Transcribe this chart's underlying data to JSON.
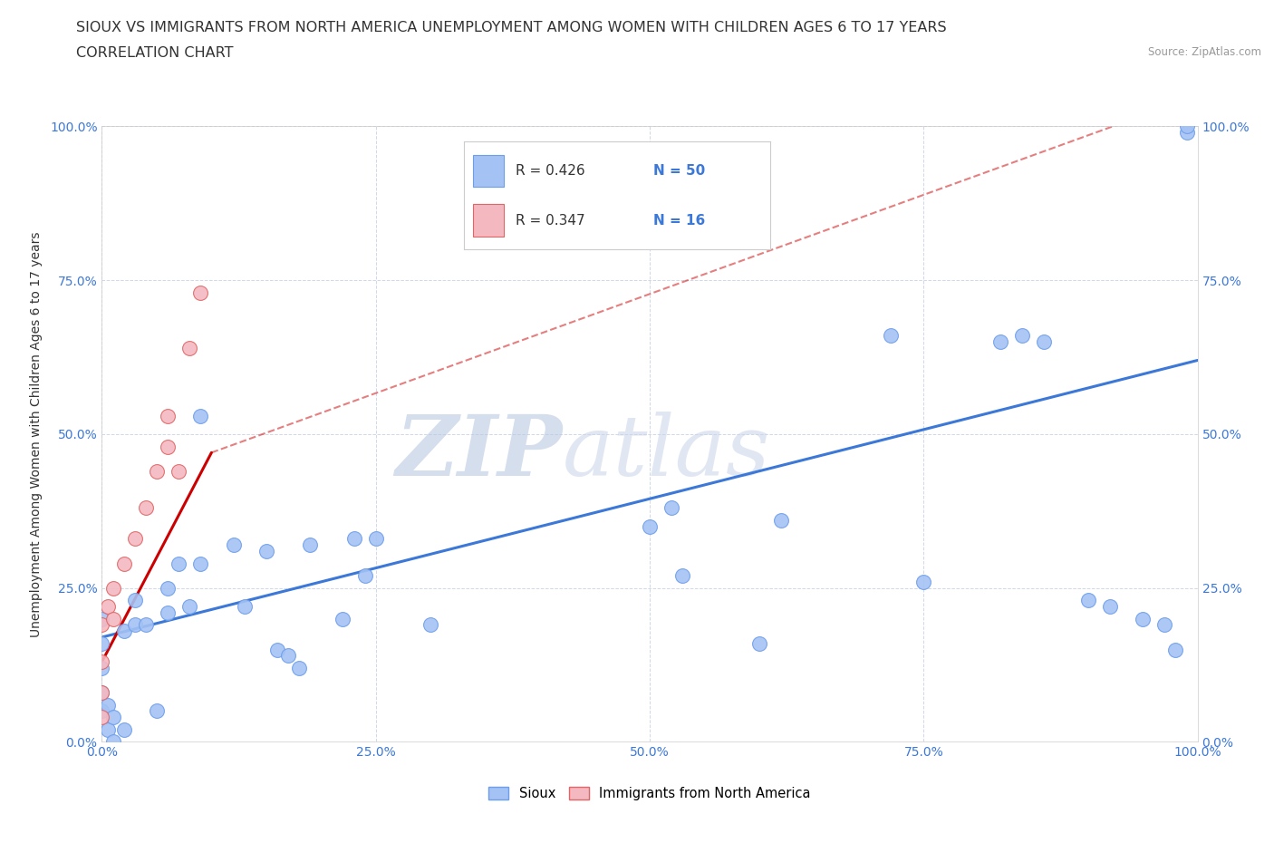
{
  "title_line1": "SIOUX VS IMMIGRANTS FROM NORTH AMERICA UNEMPLOYMENT AMONG WOMEN WITH CHILDREN AGES 6 TO 17 YEARS",
  "title_line2": "CORRELATION CHART",
  "source_text": "Source: ZipAtlas.com",
  "ylabel": "Unemployment Among Women with Children Ages 6 to 17 years",
  "xlim": [
    0.0,
    1.0
  ],
  "ylim": [
    0.0,
    1.0
  ],
  "xticks": [
    0.0,
    0.25,
    0.5,
    0.75,
    1.0
  ],
  "yticks": [
    0.0,
    0.25,
    0.5,
    0.75,
    1.0
  ],
  "xticklabels": [
    "0.0%",
    "25.0%",
    "50.0%",
    "75.0%",
    "100.0%"
  ],
  "yticklabels": [
    "0.0%",
    "25.0%",
    "50.0%",
    "75.0%",
    "100.0%"
  ],
  "sioux_color": "#a4c2f4",
  "immigrants_color": "#f4b8c1",
  "sioux_edge_color": "#6d9eeb",
  "immigrants_edge_color": "#e06666",
  "trend_sioux_color": "#3c78d8",
  "trend_immigrants_color": "#cc0000",
  "watermark_color": "#c8d4e8",
  "grid_color": "#d0d8e8",
  "legend_R_color": "#333333",
  "legend_N_color": "#3c78d8",
  "legend_label_sioux": "Sioux",
  "legend_label_immigrants": "Immigrants from North America",
  "sioux_x": [
    0.0,
    0.0,
    0.0,
    0.0,
    0.0,
    0.005,
    0.005,
    0.01,
    0.01,
    0.02,
    0.02,
    0.03,
    0.03,
    0.04,
    0.05,
    0.06,
    0.06,
    0.07,
    0.08,
    0.09,
    0.09,
    0.12,
    0.13,
    0.15,
    0.16,
    0.17,
    0.18,
    0.19,
    0.22,
    0.23,
    0.24,
    0.25,
    0.3,
    0.5,
    0.52,
    0.53,
    0.6,
    0.62,
    0.72,
    0.75,
    0.82,
    0.84,
    0.86,
    0.9,
    0.92,
    0.95,
    0.97,
    0.98,
    0.99,
    0.99
  ],
  "sioux_y": [
    0.05,
    0.08,
    0.12,
    0.16,
    0.2,
    0.02,
    0.06,
    0.0,
    0.04,
    0.02,
    0.18,
    0.19,
    0.23,
    0.19,
    0.05,
    0.21,
    0.25,
    0.29,
    0.22,
    0.53,
    0.29,
    0.32,
    0.22,
    0.31,
    0.15,
    0.14,
    0.12,
    0.32,
    0.2,
    0.33,
    0.27,
    0.33,
    0.19,
    0.35,
    0.38,
    0.27,
    0.16,
    0.36,
    0.66,
    0.26,
    0.65,
    0.66,
    0.65,
    0.23,
    0.22,
    0.2,
    0.19,
    0.15,
    0.99,
    1.0
  ],
  "immigrants_x": [
    0.0,
    0.0,
    0.0,
    0.0,
    0.005,
    0.01,
    0.01,
    0.02,
    0.03,
    0.04,
    0.05,
    0.06,
    0.06,
    0.07,
    0.08,
    0.09
  ],
  "immigrants_y": [
    0.04,
    0.08,
    0.13,
    0.19,
    0.22,
    0.2,
    0.25,
    0.29,
    0.33,
    0.38,
    0.44,
    0.48,
    0.53,
    0.44,
    0.64,
    0.73
  ],
  "sioux_trend": [
    0.0,
    1.0,
    0.17,
    0.62
  ],
  "immigrants_trend_solid": [
    0.0,
    0.1,
    0.13,
    0.47
  ],
  "immigrants_trend_dashed": [
    0.1,
    1.0,
    0.47,
    1.05
  ],
  "marker_size": 130,
  "title_fontsize": 11.5,
  "subtitle_fontsize": 11.5,
  "axis_label_fontsize": 10,
  "tick_fontsize": 10,
  "legend_fontsize": 12
}
